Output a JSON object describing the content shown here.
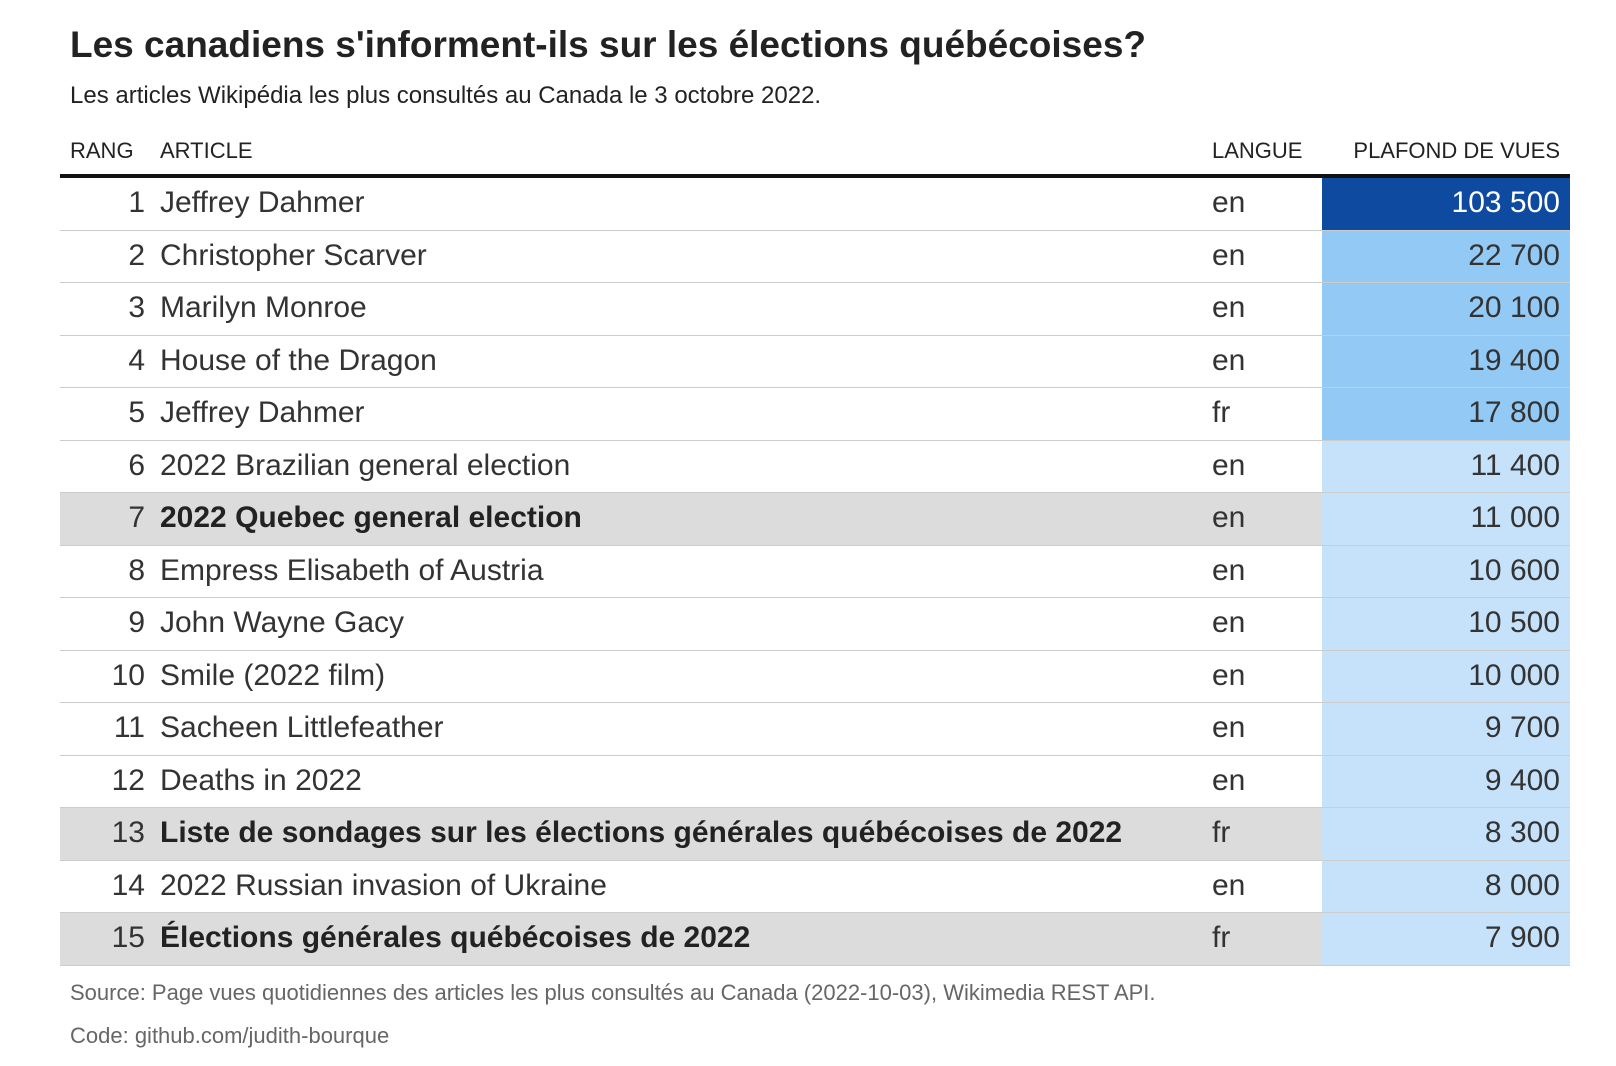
{
  "title": "Les canadiens s'informent-ils sur les élections québécoises?",
  "subtitle": "Les articles Wikipédia les plus consultés au Canada le 3 octobre 2022.",
  "header": {
    "rank": "RANG",
    "article": "ARTICLE",
    "lang": "LANGUE",
    "views": "PLAFOND DE VUES"
  },
  "colors": {
    "scale_max": "#0d4aa0",
    "scale_mid": "#93c9f5",
    "scale_low": "#c6e2fb",
    "highlight_row": "#dcdcdc"
  },
  "rows": [
    {
      "rank": "1",
      "article": "Jeffrey Dahmer",
      "lang": "en",
      "views": "103 500",
      "highlight": false
    },
    {
      "rank": "2",
      "article": "Christopher Scarver",
      "lang": "en",
      "views": "22 700",
      "highlight": false
    },
    {
      "rank": "3",
      "article": "Marilyn Monroe",
      "lang": "en",
      "views": "20 100",
      "highlight": false
    },
    {
      "rank": "4",
      "article": "House of the Dragon",
      "lang": "en",
      "views": "19 400",
      "highlight": false
    },
    {
      "rank": "5",
      "article": "Jeffrey Dahmer",
      "lang": "fr",
      "views": "17 800",
      "highlight": false
    },
    {
      "rank": "6",
      "article": "2022 Brazilian general election",
      "lang": "en",
      "views": "11 400",
      "highlight": false
    },
    {
      "rank": "7",
      "article": "2022 Quebec general election",
      "lang": "en",
      "views": "11 000",
      "highlight": true
    },
    {
      "rank": "8",
      "article": "Empress Elisabeth of Austria",
      "lang": "en",
      "views": "10 600",
      "highlight": false
    },
    {
      "rank": "9",
      "article": "John Wayne Gacy",
      "lang": "en",
      "views": "10 500",
      "highlight": false
    },
    {
      "rank": "10",
      "article": "Smile (2022 film)",
      "lang": "en",
      "views": "10 000",
      "highlight": false
    },
    {
      "rank": "11",
      "article": "Sacheen Littlefeather",
      "lang": "en",
      "views": "9 700",
      "highlight": false
    },
    {
      "rank": "12",
      "article": "Deaths in 2022",
      "lang": "en",
      "views": "9 400",
      "highlight": false
    },
    {
      "rank": "13",
      "article": "Liste de sondages sur les élections générales québécoises de 2022",
      "lang": "fr",
      "views": "8 300",
      "highlight": true
    },
    {
      "rank": "14",
      "article": "2022 Russian invasion of Ukraine",
      "lang": "en",
      "views": "8 000",
      "highlight": false
    },
    {
      "rank": "15",
      "article": "Élections générales québécoises de 2022",
      "lang": "fr",
      "views": "7 900",
      "highlight": true
    }
  ],
  "chart_data": {
    "type": "table",
    "columns": [
      "RANG",
      "ARTICLE",
      "LANGUE",
      "PLAFOND DE VUES"
    ],
    "values": [
      103500,
      22700,
      20100,
      19400,
      17800,
      11400,
      11000,
      10600,
      10500,
      10000,
      9700,
      9400,
      8300,
      8000,
      7900
    ]
  },
  "source": "Source: Page vues quotidiennes des articles les plus consultés au Canada (2022-10-03), Wikimedia REST API.",
  "code": "Code: github.com/judith-bourque"
}
